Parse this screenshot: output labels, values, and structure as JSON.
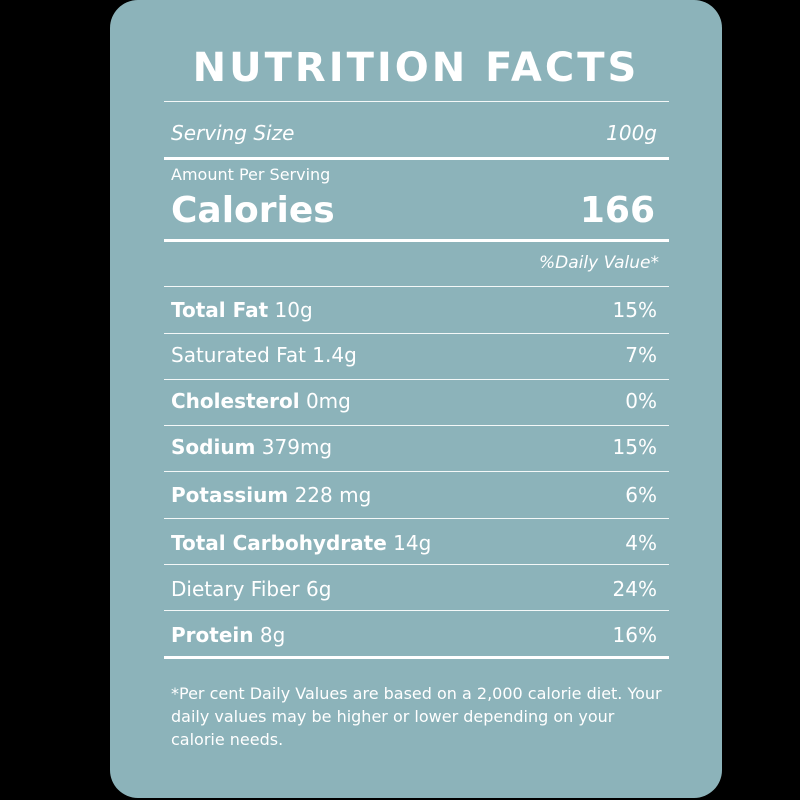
{
  "label": {
    "title": "NUTRITION FACTS",
    "serving_size_label": "Serving Size",
    "serving_size_value": "100g",
    "amount_per_serving": "Amount Per Serving",
    "calories_label": "Calories",
    "calories_value": "166",
    "daily_value_header": "%Daily Value*",
    "nutrients": [
      {
        "name": "Total Fat",
        "amount": "10g",
        "dv": "15%"
      },
      {
        "name": "Saturated Fat",
        "amount": "1.4g",
        "dv": "7%"
      },
      {
        "name": "Cholesterol",
        "amount": "0mg",
        "dv": "0%"
      },
      {
        "name": "Sodium",
        "amount": "379mg",
        "dv": "15%"
      },
      {
        "name": "Potassium",
        "amount": "228 mg",
        "dv": "6%"
      },
      {
        "name": "Total Carbohydrate",
        "amount": "14g",
        "dv": "4%"
      },
      {
        "name": "Dietary Fiber",
        "amount": "6g",
        "dv": "24%"
      },
      {
        "name": "Protein",
        "amount": "8g",
        "dv": "16%"
      }
    ],
    "footnote": "*Per cent Daily Values are based on a 2,000 calorie diet. Your daily values may be higher or lower depending on your calorie needs."
  },
  "colors": {
    "background": "#000000",
    "card": "#8cb3ba",
    "text": "#ffffff"
  }
}
